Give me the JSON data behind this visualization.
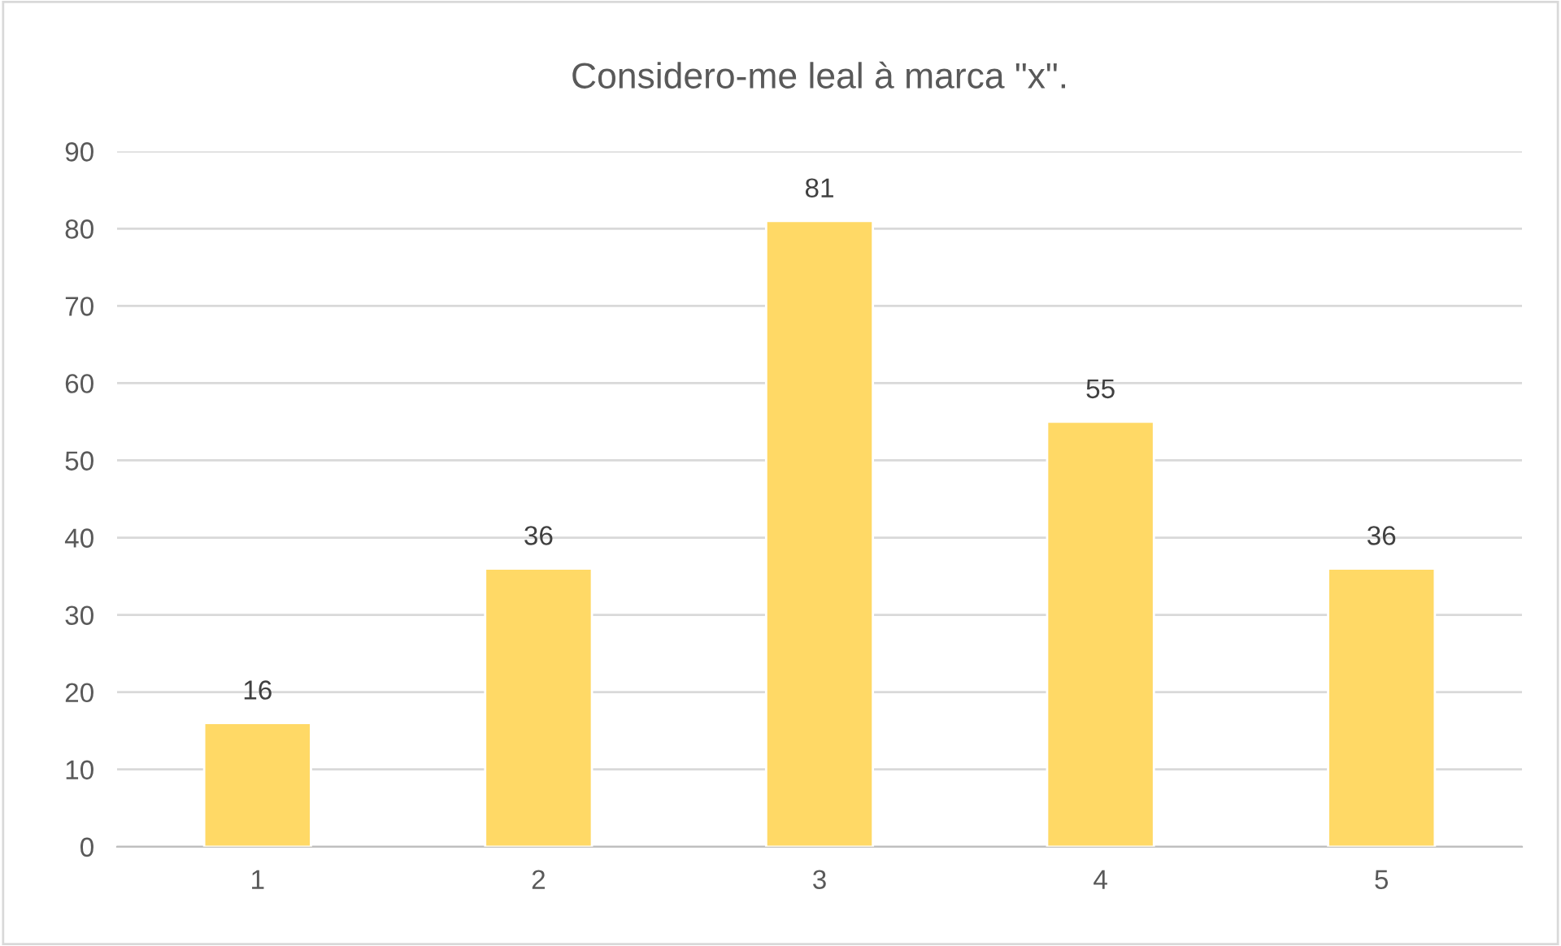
{
  "chart_data": {
    "type": "bar",
    "title": "Considero-me leal à marca \"x\".",
    "categories": [
      "1",
      "2",
      "3",
      "4",
      "5"
    ],
    "values": [
      16,
      36,
      81,
      55,
      36
    ],
    "color": "#ffd966",
    "ylim": [
      0,
      90
    ],
    "yticks": [
      0,
      10,
      20,
      30,
      40,
      50,
      60,
      70,
      80,
      90
    ],
    "grid": "y",
    "data_labels": true
  }
}
